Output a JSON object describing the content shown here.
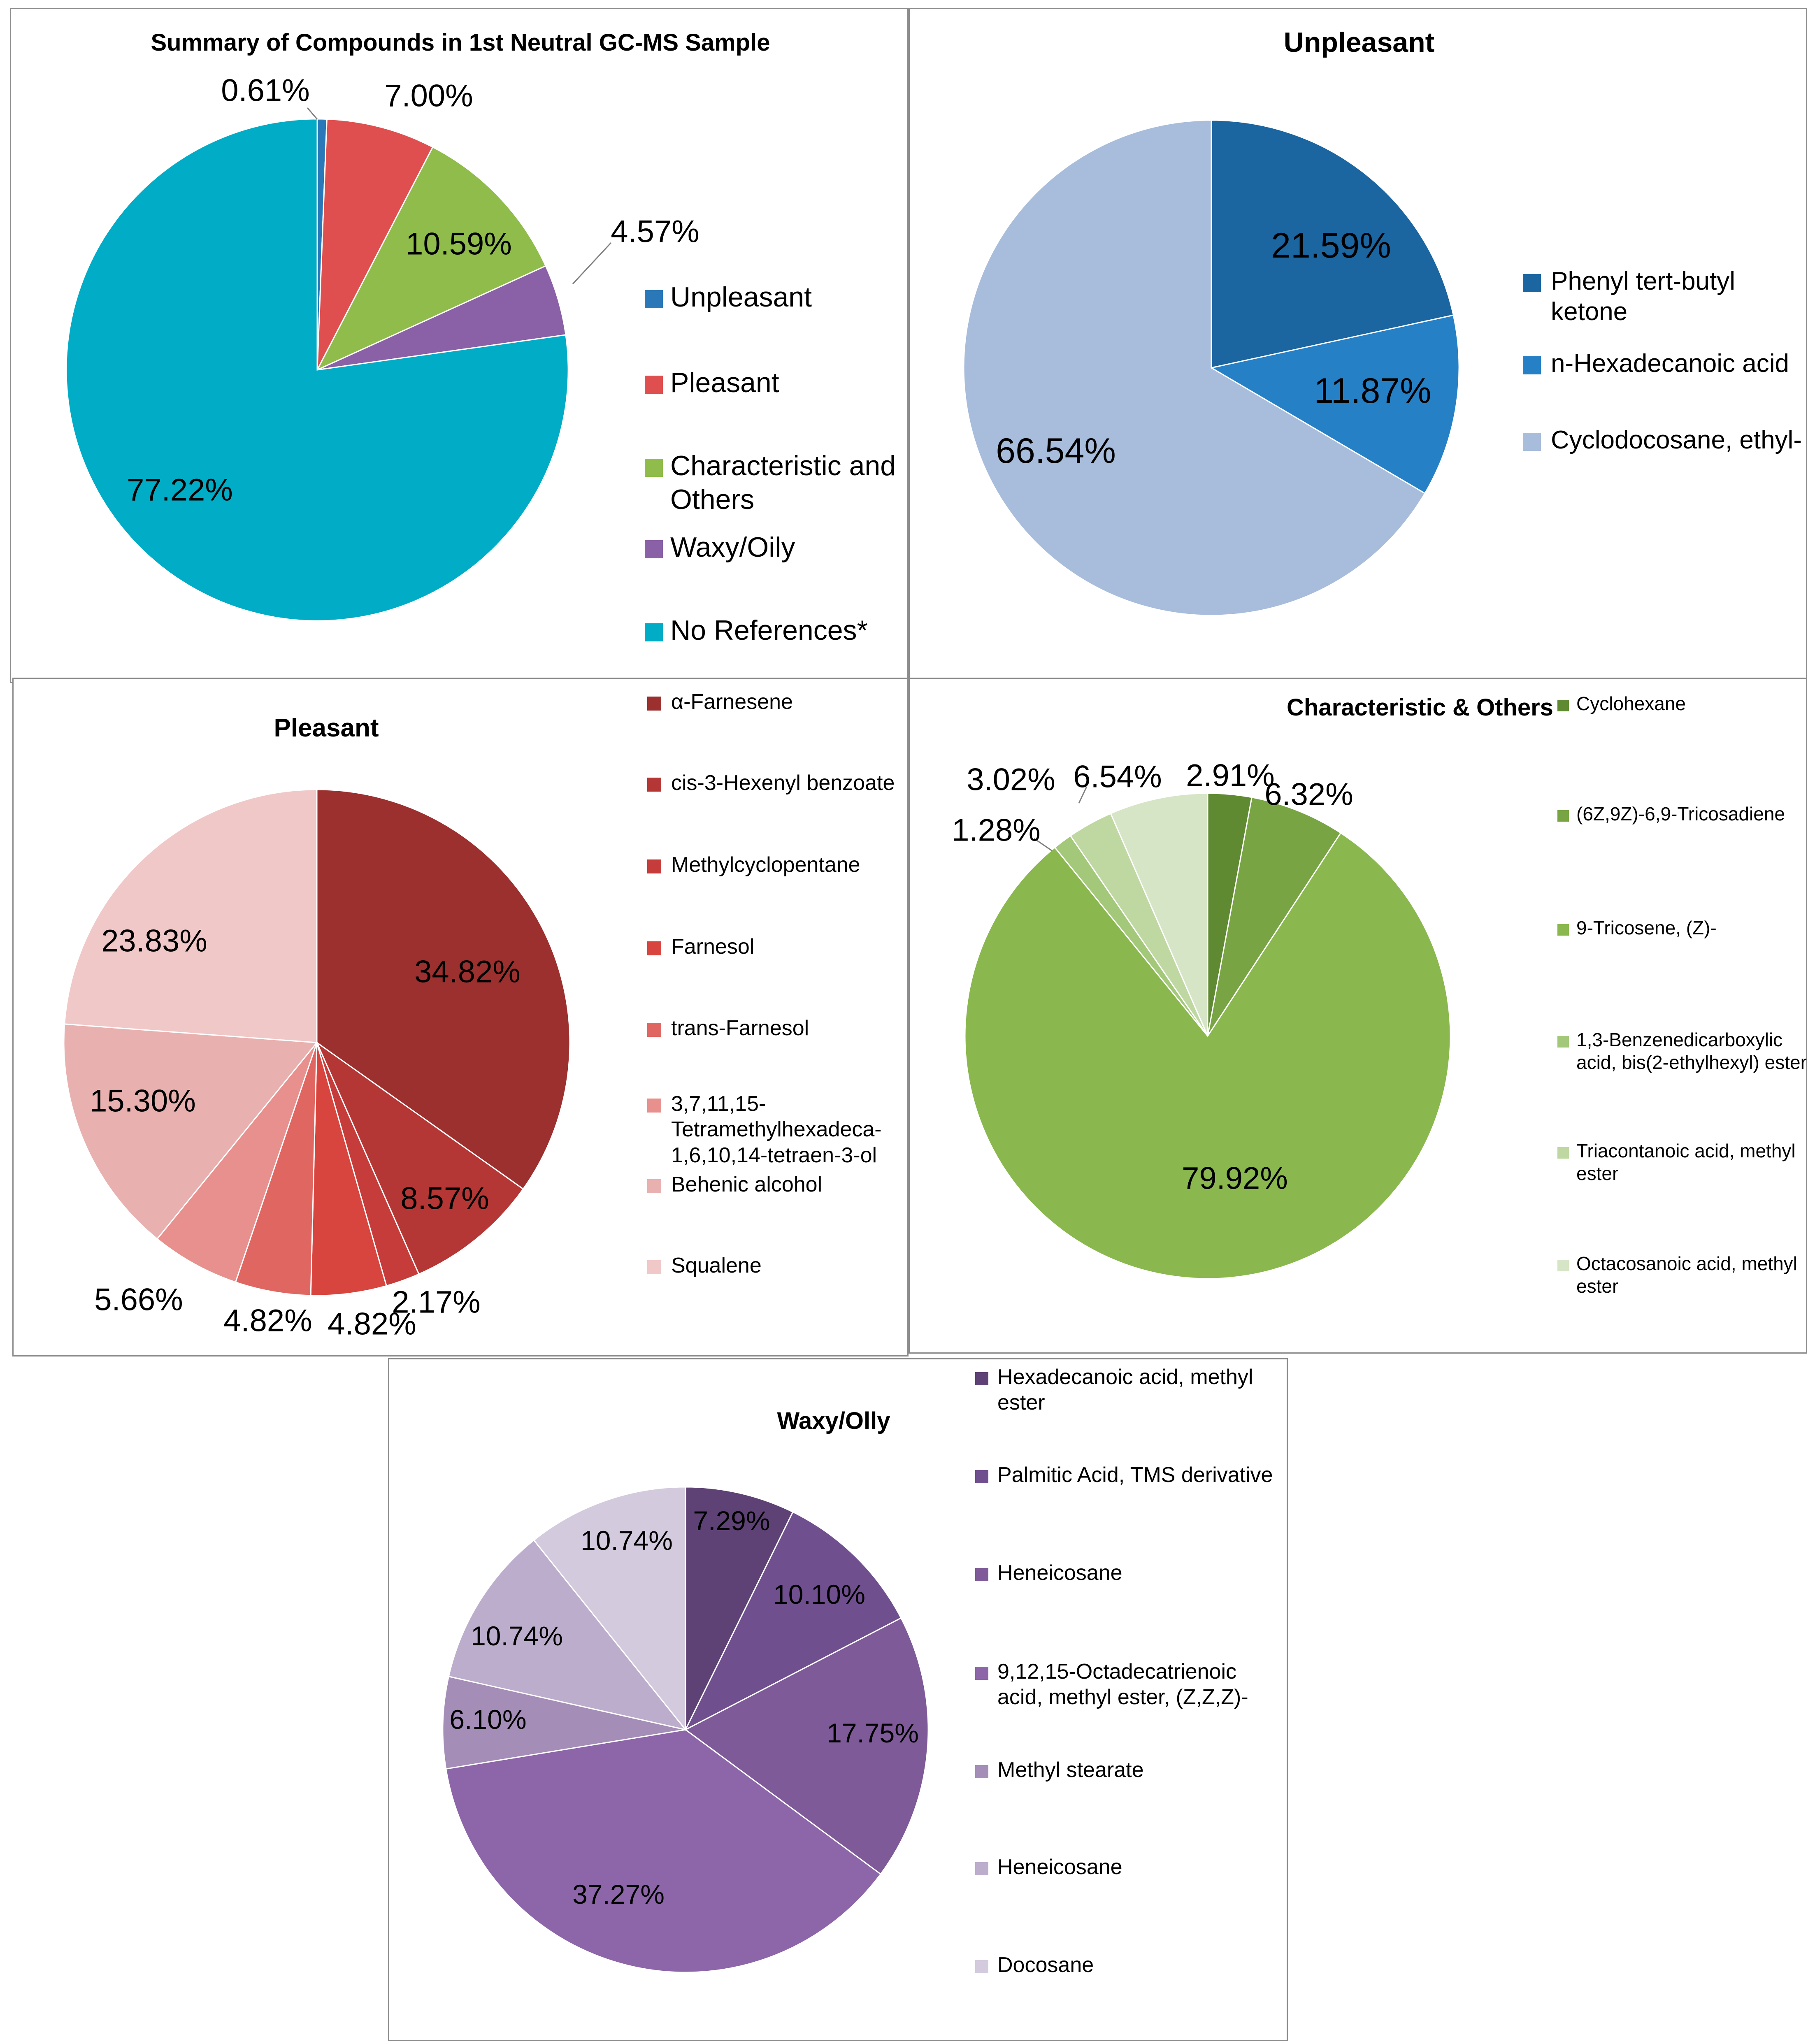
{
  "chart_data": [
    {
      "id": "summary",
      "type": "pie",
      "title": "Summary of Compounds in 1st Neutral GC-MS Sample",
      "slices": [
        {
          "label": "Unpleasant",
          "value": 0.61,
          "data_label": "0.61%",
          "color": "#2a78b8"
        },
        {
          "label": "Pleasant",
          "value": 7.0,
          "data_label": "7.00%",
          "color": "#e04f4f"
        },
        {
          "label": "Characteristic and Others",
          "value": 10.59,
          "data_label": "10.59%",
          "color": "#8fbc4a"
        },
        {
          "label": "Waxy/Oily",
          "value": 4.57,
          "data_label": "4.57%",
          "color": "#8a60a6"
        },
        {
          "label": "No References*",
          "value": 77.22,
          "data_label": "77.22%",
          "color": "#00acc6"
        }
      ],
      "legend_position": "right"
    },
    {
      "id": "unpleasant",
      "type": "pie",
      "title": "Unpleasant",
      "slices": [
        {
          "label": "Phenyl tert-butyl ketone",
          "value": 21.59,
          "data_label": "21.59%",
          "color": "#1b65a0"
        },
        {
          "label": "n-Hexadecanoic acid",
          "value": 11.87,
          "data_label": "11.87%",
          "color": "#2680c6"
        },
        {
          "label": "Cyclodocosane, ethyl-",
          "value": 66.54,
          "data_label": "66.54%",
          "color": "#a8bcdb"
        }
      ],
      "legend_position": "right"
    },
    {
      "id": "pleasant",
      "type": "pie",
      "title": "Pleasant",
      "slices": [
        {
          "label": "α-Farnesene",
          "value": 34.82,
          "data_label": "34.82%",
          "color": "#9b302f"
        },
        {
          "label": "cis-3-Hexenyl benzoate",
          "value": 8.57,
          "data_label": "8.57%",
          "color": "#b53735"
        },
        {
          "label": "Methylcyclopentane",
          "value": 2.17,
          "data_label": "2.17%",
          "color": "#c53c3a"
        },
        {
          "label": "Farnesol",
          "value": 4.82,
          "data_label": "4.82%",
          "color": "#d8453f"
        },
        {
          "label": "trans-Farnesol",
          "value": 4.82,
          "data_label": "4.82%",
          "color": "#e06662"
        },
        {
          "label": "3,7,11,15-Tetramethylhexadeca-1,6,10,14-tetraen-3-ol",
          "value": 5.66,
          "data_label": "5.66%",
          "color": "#e8908d"
        },
        {
          "label": "Behenic alcohol",
          "value": 15.3,
          "data_label": "15.30%",
          "color": "#e8b1b0"
        },
        {
          "label": "Squalene",
          "value": 23.83,
          "data_label": "23.83%",
          "color": "#f0c8c8"
        }
      ],
      "legend_position": "right"
    },
    {
      "id": "characteristic",
      "type": "pie",
      "title": "Characteristic & Others",
      "slices": [
        {
          "label": "Cyclohexane",
          "value": 2.91,
          "data_label": "2.91%",
          "color": "#5f8a32"
        },
        {
          "label": "(6Z,9Z)-6,9-Tricosadiene",
          "value": 6.32,
          "data_label": "6.32%",
          "color": "#78a444"
        },
        {
          "label": "9-Tricosene, (Z)-",
          "value": 79.92,
          "data_label": "79.92%",
          "color": "#8ab84e"
        },
        {
          "label": "1,3-Benzenedicarboxylic acid, bis(2-ethylhexyl) ester",
          "value": 1.28,
          "data_label": "1.28%",
          "color": "#a3c87a"
        },
        {
          "label": "Triacontanoic acid, methyl ester",
          "value": 3.02,
          "data_label": "3.02%",
          "color": "#bfd8a2"
        },
        {
          "label": "Octacosanoic acid, methyl ester",
          "value": 6.54,
          "data_label": "6.54%",
          "color": "#d6e5c6"
        }
      ],
      "legend_position": "right"
    },
    {
      "id": "waxy",
      "type": "pie",
      "title": "Waxy/Olly",
      "slices": [
        {
          "label": "Hexadecanoic acid, methyl ester",
          "value": 7.29,
          "data_label": "7.29%",
          "color": "#5e4275"
        },
        {
          "label": "Palmitic Acid, TMS derivative",
          "value": 10.1,
          "data_label": "10.10%",
          "color": "#6f4f8e"
        },
        {
          "label": "Heneicosane",
          "value": 17.75,
          "data_label": "17.75%",
          "color": "#7e5a98"
        },
        {
          "label": "9,12,15-Octadecatrienoic acid, methyl ester, (Z,Z,Z)-",
          "value": 37.27,
          "data_label": "37.27%",
          "color": "#8c66a8"
        },
        {
          "label": "Methyl stearate",
          "value": 6.1,
          "data_label": "6.10%",
          "color": "#a48db7"
        },
        {
          "label": "Heneicosane",
          "value": 10.74,
          "data_label": "10.74%",
          "color": "#bcadcc"
        },
        {
          "label": "Docosane",
          "value": 10.74,
          "data_label": "10.74%",
          "color": "#d3cadd"
        }
      ],
      "legend_position": "right"
    }
  ]
}
